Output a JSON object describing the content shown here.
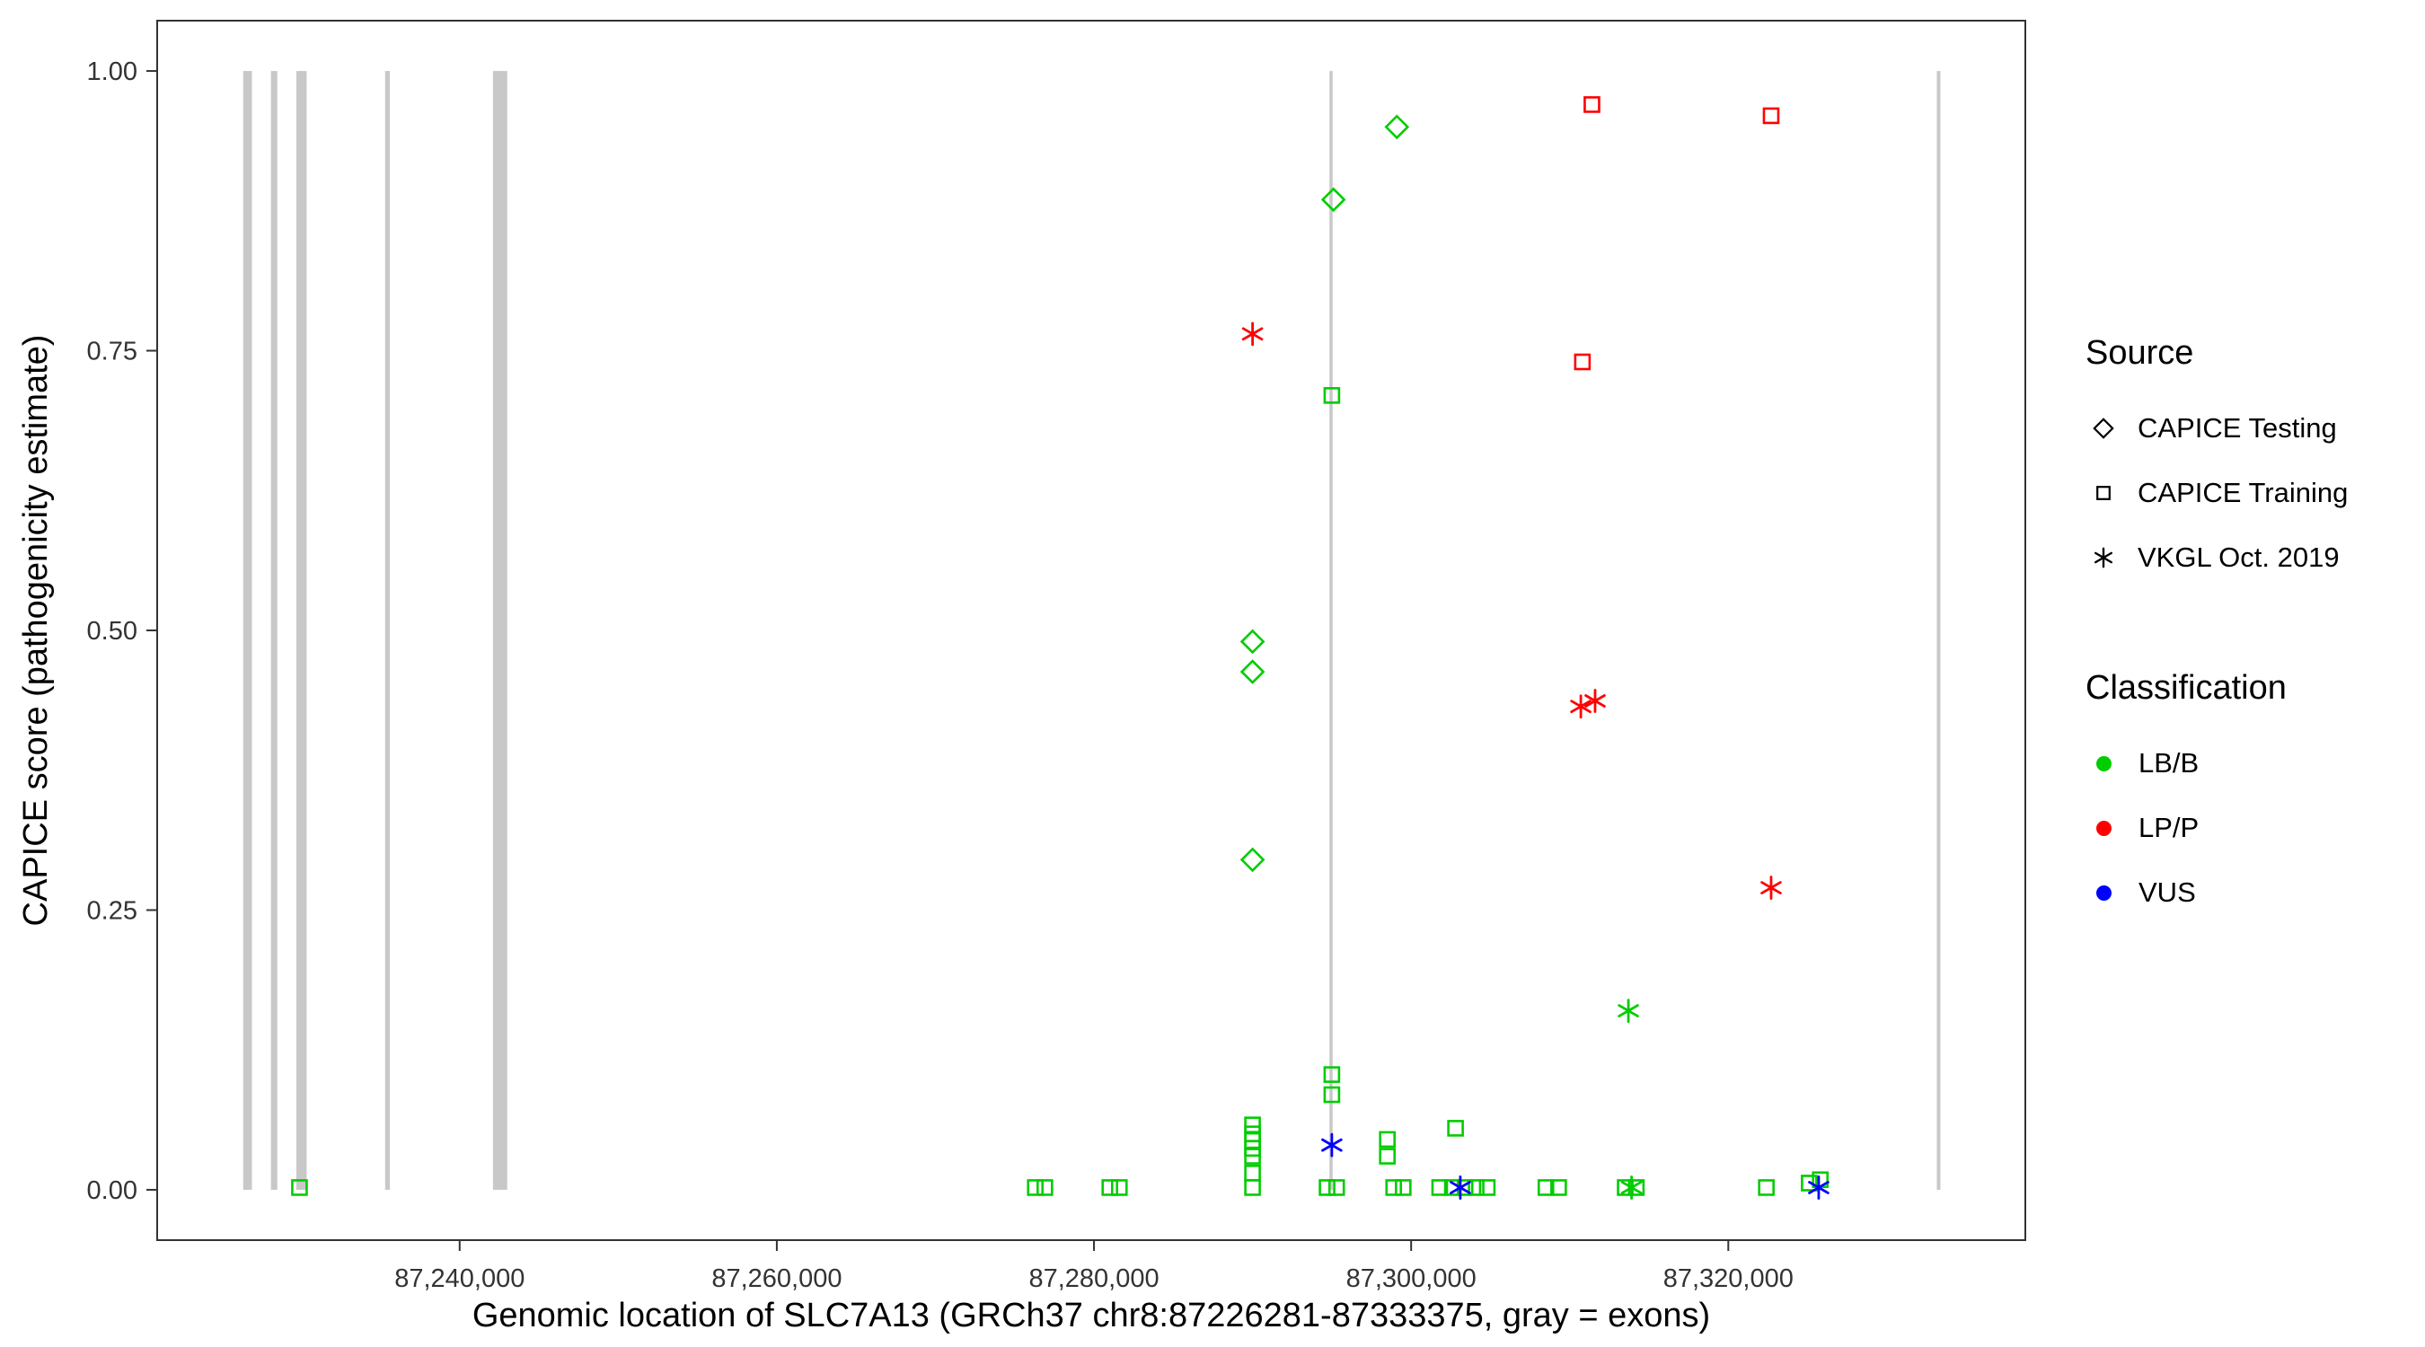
{
  "figure": {
    "x_axis": {
      "label": "Genomic location of SLC7A13 (GRCh37 chr8:87226281-87333375, gray = exons)",
      "ticks": [
        87240000,
        87260000,
        87280000,
        87300000,
        87320000
      ],
      "tick_labels": [
        "87,240,000",
        "87,260,000",
        "87,280,000",
        "87,300,000",
        "87,320,000"
      ]
    },
    "y_axis": {
      "label": "CAPICE score (pathogenicity estimate)",
      "ticks": [
        0,
        0.25,
        0.5,
        0.75,
        1
      ],
      "tick_labels": [
        "0.00",
        "0.25",
        "0.50",
        "0.75",
        "1.00"
      ]
    }
  },
  "legend": {
    "source": {
      "title": "Source",
      "items": [
        {
          "shape": "diamond",
          "label": "CAPICE Testing"
        },
        {
          "shape": "square",
          "label": "CAPICE Training"
        },
        {
          "shape": "asterisk",
          "label": "VKGL Oct. 2019"
        }
      ]
    },
    "classification": {
      "title": "Classification",
      "items": [
        {
          "label": "LB/B",
          "color": "#00cd00"
        },
        {
          "label": "LP/P",
          "color": "#ff0000"
        },
        {
          "label": "VUS",
          "color": "#0000ff"
        }
      ]
    }
  },
  "colors": {
    "classification": {
      "LB/B": "#00cd00",
      "LP/P": "#ff0000",
      "VUS": "#0000ff"
    },
    "exon": "#c8c8c8",
    "panel_border": "#333333",
    "tick": "#333333"
  },
  "chart_data": {
    "type": "scatter",
    "title": "",
    "xlabel": "Genomic location of SLC7A13 (GRCh37 chr8:87226281-87333375, gray = exons)",
    "ylabel": "CAPICE score (pathogenicity estimate)",
    "x_range_shown": [
      87220926,
      87338730
    ],
    "y_range_shown": [
      -0.045,
      1.045
    ],
    "gene": {
      "name": "SLC7A13",
      "assembly": "GRCh37",
      "chromosome": "chr8",
      "start": 87226281,
      "end": 87333375
    },
    "exons": [
      [
        87226350,
        87226900
      ],
      [
        87228100,
        87228500
      ],
      [
        87229700,
        87230350
      ],
      [
        87235300,
        87235600
      ],
      [
        87242100,
        87243000
      ],
      [
        87294850,
        87295050
      ],
      [
        87333150,
        87333375
      ]
    ],
    "series": [
      {
        "source": "CAPICE Testing",
        "shape": "diamond",
        "classification": "LB/B",
        "points": [
          [
            87299100,
            0.95
          ],
          [
            87295100,
            0.885
          ],
          [
            87290000,
            0.49
          ],
          [
            87290000,
            0.463
          ],
          [
            87290000,
            0.295
          ]
        ]
      },
      {
        "source": "CAPICE Training",
        "shape": "square",
        "classification": "LP/P",
        "points": [
          [
            87311400,
            0.97
          ],
          [
            87322700,
            0.96
          ],
          [
            87310800,
            0.74
          ]
        ]
      },
      {
        "source": "CAPICE Training",
        "shape": "square",
        "classification": "LB/B",
        "points": [
          [
            87229900,
            0.002
          ],
          [
            87276300,
            0.002
          ],
          [
            87276900,
            0.002
          ],
          [
            87281000,
            0.002
          ],
          [
            87281600,
            0.002
          ],
          [
            87290000,
            0.058
          ],
          [
            87290000,
            0.05
          ],
          [
            87290000,
            0.044
          ],
          [
            87290000,
            0.037
          ],
          [
            87290000,
            0.03
          ],
          [
            87290000,
            0.015
          ],
          [
            87290000,
            0.002
          ],
          [
            87295000,
            0.71
          ],
          [
            87295000,
            0.103
          ],
          [
            87295000,
            0.085
          ],
          [
            87294700,
            0.002
          ],
          [
            87295300,
            0.002
          ],
          [
            87298500,
            0.045
          ],
          [
            87298500,
            0.03
          ],
          [
            87298900,
            0.002
          ],
          [
            87299500,
            0.002
          ],
          [
            87302800,
            0.055
          ],
          [
            87301800,
            0.002
          ],
          [
            87302600,
            0.002
          ],
          [
            87303400,
            0.002
          ],
          [
            87304100,
            0.002
          ],
          [
            87304800,
            0.002
          ],
          [
            87308500,
            0.002
          ],
          [
            87309300,
            0.002
          ],
          [
            87313500,
            0.002
          ],
          [
            87314200,
            0.002
          ],
          [
            87322400,
            0.002
          ],
          [
            87325100,
            0.006
          ],
          [
            87325800,
            0.009
          ]
        ]
      },
      {
        "source": "VKGL Oct. 2019",
        "shape": "asterisk",
        "classification": "LP/P",
        "points": [
          [
            87290000,
            0.765
          ],
          [
            87310700,
            0.432
          ],
          [
            87311600,
            0.437
          ],
          [
            87322700,
            0.27
          ]
        ]
      },
      {
        "source": "VKGL Oct. 2019",
        "shape": "asterisk",
        "classification": "LB/B",
        "points": [
          [
            87313700,
            0.16
          ],
          [
            87313900,
            0.002
          ]
        ]
      },
      {
        "source": "VKGL Oct. 2019",
        "shape": "asterisk",
        "classification": "VUS",
        "points": [
          [
            87295000,
            0.04
          ],
          [
            87303100,
            0.002
          ],
          [
            87325700,
            0.002
          ]
        ]
      }
    ]
  }
}
